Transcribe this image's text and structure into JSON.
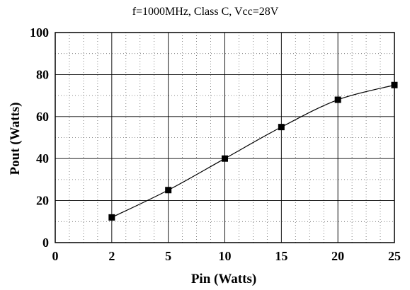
{
  "chart_data": {
    "type": "line",
    "title": "f=1000MHz, Class C, Vcc=28V",
    "xlabel": "Pin (Watts)",
    "ylabel": "Pout (Watts)",
    "x_tick_labels": [
      "0",
      "2",
      "5",
      "10",
      "15",
      "20",
      "25"
    ],
    "y_tick_labels": [
      "0",
      "20",
      "40",
      "60",
      "80",
      "100"
    ],
    "grid": true,
    "series": [
      {
        "marker": "square",
        "color": "#000000",
        "points": [
          {
            "x": "2",
            "y": 12
          },
          {
            "x": "5",
            "y": 25
          },
          {
            "x": "10",
            "y": 40
          },
          {
            "x": "15",
            "y": 55
          },
          {
            "x": "20",
            "y": 68
          },
          {
            "x": "25",
            "y": 75
          }
        ]
      }
    ],
    "ylim": [
      0,
      100
    ]
  }
}
